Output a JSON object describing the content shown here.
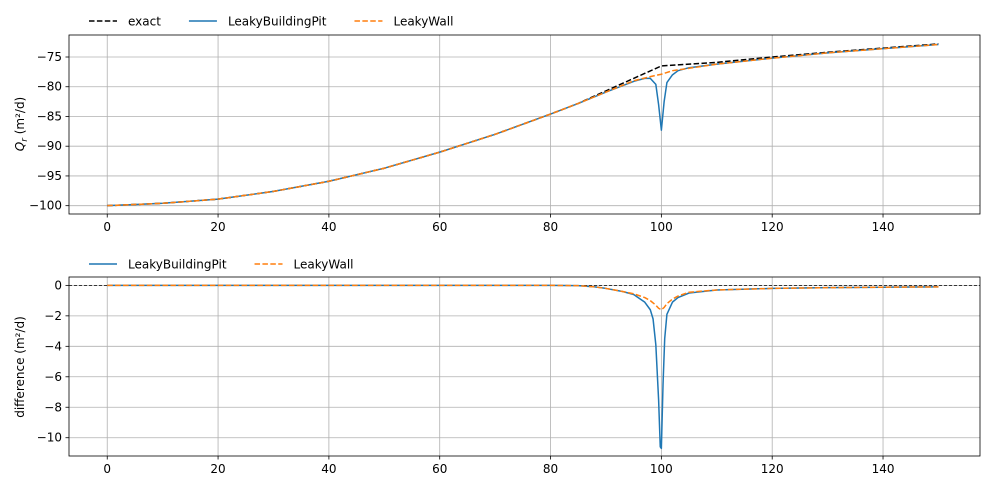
{
  "colors": {
    "exact": "#000000",
    "pit": "#1f77b4",
    "wall": "#ff7f0e",
    "grid": "#b0b0b0"
  },
  "chart_data": [
    {
      "type": "line",
      "title": "",
      "xlabel": "",
      "ylabel_main": "Q",
      "ylabel_sub": "r",
      "ylabel_unit": " (m²/d)",
      "xlim": [
        -6.9,
        157.5
      ],
      "ylim": [
        -101.4,
        -71.3
      ],
      "xticks": [
        0,
        20,
        40,
        60,
        80,
        100,
        120,
        140
      ],
      "yticks": [
        -100,
        -95,
        -90,
        -85,
        -80,
        -75
      ],
      "grid": true,
      "legend_placement": "top-left (above axes)",
      "series": [
        {
          "name": "exact",
          "style": "dashed",
          "color": "#000000",
          "x": [
            0,
            10,
            20,
            30,
            40,
            50,
            60,
            70,
            80,
            85,
            90,
            95,
            100,
            110,
            120,
            130,
            140,
            150
          ],
          "y": [
            -100.0,
            -99.6,
            -98.9,
            -97.6,
            -95.9,
            -93.7,
            -91.0,
            -88.0,
            -84.6,
            -82.8,
            -80.7,
            -78.6,
            -76.5,
            -75.9,
            -75.0,
            -74.2,
            -73.5,
            -72.8
          ]
        },
        {
          "name": "LeakyBuildingPit",
          "style": "solid",
          "color": "#1f77b4",
          "x": [
            0,
            10,
            20,
            30,
            40,
            50,
            60,
            70,
            80,
            85,
            90,
            95,
            97,
            98,
            99,
            99.5,
            100,
            100.5,
            101,
            102,
            103,
            105,
            110,
            120,
            130,
            140,
            150
          ],
          "y": [
            -100.0,
            -99.6,
            -98.9,
            -97.6,
            -95.9,
            -93.7,
            -91.0,
            -88.0,
            -84.6,
            -82.8,
            -80.9,
            -79.1,
            -78.6,
            -78.6,
            -79.6,
            -83.0,
            -87.3,
            -82.5,
            -79.3,
            -78.0,
            -77.3,
            -76.8,
            -76.2,
            -75.2,
            -74.3,
            -73.6,
            -72.9
          ]
        },
        {
          "name": "LeakyWall",
          "style": "dashed",
          "color": "#ff7f0e",
          "x": [
            0,
            10,
            20,
            30,
            40,
            50,
            60,
            70,
            80,
            85,
            90,
            95,
            98,
            100,
            102,
            105,
            110,
            120,
            130,
            140,
            150
          ],
          "y": [
            -100.0,
            -99.6,
            -98.9,
            -97.6,
            -95.9,
            -93.7,
            -91.0,
            -88.0,
            -84.6,
            -82.8,
            -80.9,
            -79.0,
            -78.3,
            -77.9,
            -77.3,
            -76.9,
            -76.2,
            -75.2,
            -74.3,
            -73.6,
            -72.9
          ]
        }
      ]
    },
    {
      "type": "line",
      "title": "",
      "xlabel": "",
      "ylabel": "difference (m²/d)",
      "xlim": [
        -6.9,
        157.5
      ],
      "ylim": [
        -11.2,
        0.55
      ],
      "xticks": [
        0,
        20,
        40,
        60,
        80,
        100,
        120,
        140
      ],
      "yticks": [
        0,
        -2,
        -4,
        -6,
        -8,
        -10
      ],
      "zero_line": 0,
      "grid": true,
      "legend_placement": "top-left (above axes)",
      "series": [
        {
          "name": "LeakyBuildingPit",
          "style": "solid",
          "color": "#1f77b4",
          "x": [
            0,
            20,
            40,
            60,
            80,
            85,
            88,
            90,
            93,
            95,
            97,
            98,
            98.5,
            99,
            99.5,
            99.8,
            100,
            100.3,
            100.6,
            101,
            102,
            103,
            105,
            110,
            120,
            130,
            140,
            150
          ],
          "y": [
            0,
            0,
            0,
            0,
            0,
            -0.02,
            -0.1,
            -0.2,
            -0.4,
            -0.6,
            -1.1,
            -1.6,
            -2.2,
            -3.9,
            -7.5,
            -10.6,
            -10.7,
            -6.5,
            -3.5,
            -1.9,
            -1.1,
            -0.8,
            -0.5,
            -0.3,
            -0.2,
            -0.15,
            -0.12,
            -0.1
          ]
        },
        {
          "name": "LeakyWall",
          "style": "dashed",
          "color": "#ff7f0e",
          "x": [
            0,
            20,
            40,
            60,
            80,
            85,
            88,
            90,
            93,
            95,
            97,
            98,
            99,
            99.5,
            100,
            100.5,
            101,
            102,
            103,
            105,
            110,
            120,
            130,
            140,
            150
          ],
          "y": [
            0,
            0,
            0,
            0,
            0,
            -0.02,
            -0.1,
            -0.2,
            -0.4,
            -0.55,
            -0.8,
            -1.0,
            -1.3,
            -1.5,
            -1.6,
            -1.45,
            -1.2,
            -0.9,
            -0.7,
            -0.45,
            -0.3,
            -0.2,
            -0.15,
            -0.12,
            -0.1
          ]
        }
      ]
    }
  ]
}
